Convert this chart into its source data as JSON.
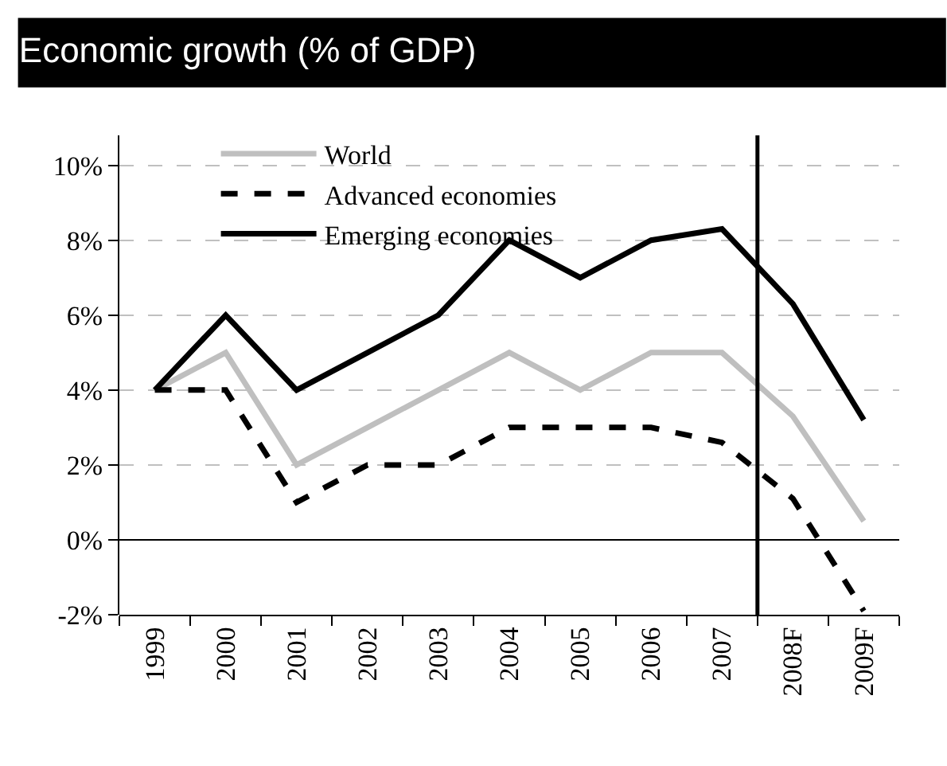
{
  "chart_data": {
    "type": "line",
    "title": "Economic growth (% of GDP)",
    "x": [
      1999,
      2000,
      2001,
      2002,
      2003,
      2004,
      2005,
      2006,
      2007,
      2008,
      2009
    ],
    "xlim": [
      1998.5,
      2009.5
    ],
    "xticks": [
      1999,
      2000,
      2001,
      2002,
      2003,
      2004,
      2005,
      2006,
      2007,
      {
        "value": 2008,
        "label": "2008F"
      },
      {
        "value": 2009,
        "label": "2009F"
      }
    ],
    "ylim": [
      -2,
      10.8
    ],
    "yticks": [
      {
        "value": -2,
        "label": "-2%"
      },
      {
        "value": 0,
        "label": "0%"
      },
      {
        "value": 2,
        "label": "2%"
      },
      {
        "value": 4,
        "label": "4%"
      },
      {
        "value": 6,
        "label": "6%"
      },
      {
        "value": 8,
        "label": "8%"
      },
      {
        "value": 10,
        "label": "10%"
      }
    ],
    "series": [
      {
        "name": "World",
        "color": "#bfbfbf",
        "line_style": "solid",
        "values": [
          4,
          5,
          2,
          3,
          4,
          5,
          4,
          5,
          5,
          3.3,
          0.5
        ]
      },
      {
        "name": "Advanced economies",
        "color": "#000000",
        "line_style": "dashed",
        "values": [
          4,
          4,
          1,
          2,
          2,
          3,
          3,
          3,
          2.6,
          1.1,
          -1.9
        ]
      },
      {
        "name": "Emerging economies",
        "color": "#000000",
        "line_style": "solid",
        "values": [
          4,
          6,
          4,
          5,
          6,
          8,
          7,
          8,
          8.3,
          6.3,
          3.2
        ]
      }
    ],
    "ref_lines": [
      {
        "axis": "x",
        "value": 2007.5,
        "color": "#000000",
        "line_style": "solid"
      }
    ],
    "grid": "y",
    "legend": "top",
    "marker": "none"
  }
}
